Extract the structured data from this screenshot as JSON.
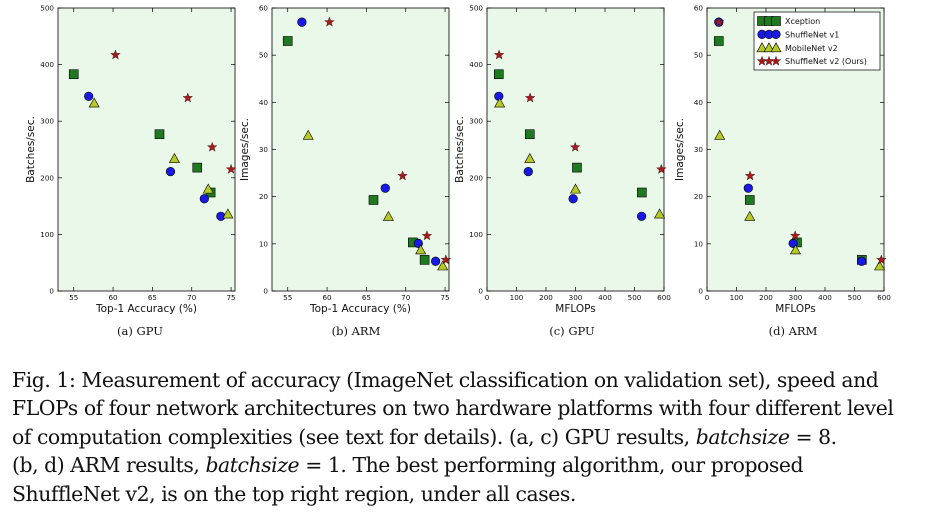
{
  "figure": {
    "colors": {
      "panel_bg": "#e9f8e9",
      "Xception": "#1f7a1f",
      "ShuffleNet v1": "#1919e6",
      "MobileNet v2": "#b7c922",
      "ShuffleNet v2 (Ours)": "#a81a1a"
    },
    "legend": {
      "location": "top-right of panel (d)"
    },
    "subcaptions": [
      "(a) GPU",
      "(b) ARM",
      "(c) GPU",
      "(d) ARM"
    ]
  },
  "chart_data": [
    {
      "type": "scatter",
      "title": "",
      "xlabel": "Top-1 Accuracy (%)",
      "ylabel": "Batches/sec.",
      "xlim": [
        53,
        75.5
      ],
      "ylim": [
        0,
        500
      ],
      "xticks": [
        "55",
        "60",
        "65",
        "70",
        "75"
      ],
      "yticks": [
        "0",
        "100",
        "200",
        "300",
        "400",
        "500"
      ],
      "series": [
        {
          "name": "Xception",
          "marker": "square",
          "points": [
            [
              55.0,
              383
            ],
            [
              65.9,
              277
            ],
            [
              70.7,
              218
            ],
            [
              72.4,
              174
            ]
          ]
        },
        {
          "name": "ShuffleNet v1",
          "marker": "circle",
          "points": [
            [
              56.9,
              344
            ],
            [
              67.3,
              211
            ],
            [
              71.6,
              163
            ],
            [
              73.7,
              132
            ]
          ]
        },
        {
          "name": "MobileNet v2",
          "marker": "triangle",
          "points": [
            [
              57.6,
              332
            ],
            [
              67.8,
              234
            ],
            [
              72.1,
              180
            ],
            [
              74.6,
              136
            ]
          ]
        },
        {
          "name": "ShuffleNet v2 (Ours)",
          "marker": "star",
          "points": [
            [
              60.3,
              417
            ],
            [
              69.5,
              341
            ],
            [
              72.6,
              254
            ],
            [
              75.0,
              215
            ]
          ]
        }
      ]
    },
    {
      "type": "scatter",
      "title": "",
      "xlabel": "Top-1 Accuracy (%)",
      "ylabel": "Images/sec.",
      "xlim": [
        53,
        75.5
      ],
      "ylim": [
        0,
        60
      ],
      "xticks": [
        "55",
        "60",
        "65",
        "70",
        "75"
      ],
      "yticks": [
        "0",
        "10",
        "20",
        "30",
        "40",
        "50",
        "60"
      ],
      "series": [
        {
          "name": "Xception",
          "marker": "square",
          "points": [
            [
              55.0,
              53.0
            ],
            [
              65.9,
              19.3
            ],
            [
              70.9,
              10.3
            ],
            [
              72.4,
              6.6
            ]
          ]
        },
        {
          "name": "ShuffleNet v1",
          "marker": "circle",
          "points": [
            [
              56.8,
              57.0
            ],
            [
              67.4,
              21.8
            ],
            [
              71.6,
              10.1
            ],
            [
              73.8,
              6.3
            ]
          ]
        },
        {
          "name": "MobileNet v2",
          "marker": "triangle",
          "points": [
            [
              57.6,
              33.0
            ],
            [
              67.8,
              15.8
            ],
            [
              71.9,
              8.7
            ],
            [
              74.7,
              5.3
            ]
          ]
        },
        {
          "name": "ShuffleNet v2 (Ours)",
          "marker": "star",
          "points": [
            [
              60.3,
              57.0
            ],
            [
              69.6,
              24.4
            ],
            [
              72.7,
              11.7
            ],
            [
              75.1,
              6.6
            ]
          ]
        }
      ]
    },
    {
      "type": "scatter",
      "title": "",
      "xlabel": "MFLOPs",
      "ylabel": "Batches/sec.",
      "xlim": [
        0,
        600
      ],
      "ylim": [
        0,
        500
      ],
      "xticks": [
        "0",
        "100",
        "200",
        "300",
        "400",
        "500",
        "600"
      ],
      "yticks": [
        "0",
        "100",
        "200",
        "300",
        "400",
        "500"
      ],
      "series": [
        {
          "name": "Xception",
          "marker": "square",
          "points": [
            [
              40,
              383
            ],
            [
              145,
              277
            ],
            [
              305,
              218
            ],
            [
              525,
              174
            ]
          ]
        },
        {
          "name": "ShuffleNet v1",
          "marker": "circle",
          "points": [
            [
              40,
              344
            ],
            [
              140,
              211
            ],
            [
              292,
              163
            ],
            [
              524,
              132
            ]
          ]
        },
        {
          "name": "MobileNet v2",
          "marker": "triangle",
          "points": [
            [
              43,
              332
            ],
            [
              145,
              234
            ],
            [
              300,
              180
            ],
            [
              585,
              136
            ]
          ]
        },
        {
          "name": "ShuffleNet v2 (Ours)",
          "marker": "star",
          "points": [
            [
              41,
              417
            ],
            [
              146,
              341
            ],
            [
              299,
              254
            ],
            [
              591,
              215
            ]
          ]
        }
      ]
    },
    {
      "type": "scatter",
      "title": "",
      "xlabel": "MFLOPs",
      "ylabel": "Images/sec.",
      "xlim": [
        0,
        600
      ],
      "ylim": [
        0,
        60
      ],
      "xticks": [
        "0",
        "100",
        "200",
        "300",
        "400",
        "500",
        "600"
      ],
      "yticks": [
        "0",
        "10",
        "20",
        "30",
        "40",
        "50",
        "60"
      ],
      "series": [
        {
          "name": "Xception",
          "marker": "square",
          "points": [
            [
              40,
              53.0
            ],
            [
              145,
              19.3
            ],
            [
              305,
              10.3
            ],
            [
              525,
              6.6
            ]
          ]
        },
        {
          "name": "ShuffleNet v1",
          "marker": "circle",
          "points": [
            [
              40,
              57.0
            ],
            [
              140,
              21.8
            ],
            [
              292,
              10.1
            ],
            [
              524,
              6.3
            ]
          ]
        },
        {
          "name": "MobileNet v2",
          "marker": "triangle",
          "points": [
            [
              43,
              33.0
            ],
            [
              145,
              15.8
            ],
            [
              300,
              8.7
            ],
            [
              585,
              5.3
            ]
          ]
        },
        {
          "name": "ShuffleNet v2 (Ours)",
          "marker": "star",
          "points": [
            [
              41,
              57.0
            ],
            [
              146,
              24.4
            ],
            [
              299,
              11.7
            ],
            [
              591,
              6.6
            ]
          ]
        }
      ]
    }
  ],
  "caption": {
    "line1": "Fig. 1: Measurement of accuracy (ImageNet classification on validation set), speed and",
    "line2": "FLOPs of four network architectures on two hardware platforms with four different level",
    "line3a": "of computation complexities (see text for details). (a, c) GPU results, ",
    "line3_var": "batchsize",
    "line3b": " = 8.",
    "line4a": "(b, d) ARM results, ",
    "line4_var": "batchsize",
    "line4b": " = 1. The best performing algorithm, our proposed",
    "line5": "ShuffleNet v2, is on the top right region, under all cases."
  }
}
